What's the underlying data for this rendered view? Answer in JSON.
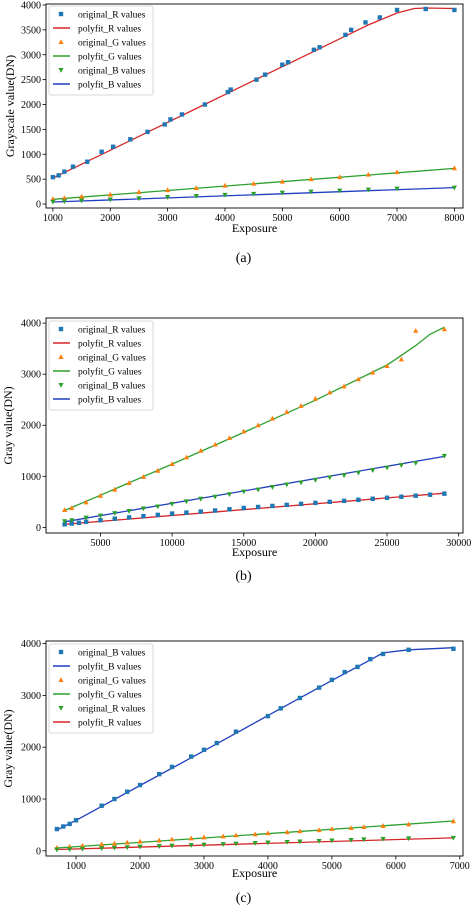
{
  "chart_data": [
    {
      "type": "scatter",
      "panel_label": "(a)",
      "xlabel": "Exposure",
      "ylabel": "Grayscale value(DN)",
      "xlim": [
        880,
        8150
      ],
      "ylim": [
        -80,
        4020
      ],
      "xticks": [
        1000,
        2000,
        3000,
        4000,
        5000,
        6000,
        7000,
        8000
      ],
      "yticks": [
        0,
        500,
        1000,
        1500,
        2000,
        2500,
        3000,
        3500,
        4000
      ],
      "legend_position": "top-left",
      "grid": false,
      "series": [
        {
          "name": "original_R values",
          "kind": "scatter",
          "marker": "square",
          "color": "#1f77b4",
          "x": [
            1000,
            1100,
            1200,
            1350,
            1600,
            1850,
            2050,
            2350,
            2650,
            2950,
            3050,
            3250,
            3650,
            4050,
            4100,
            4550,
            4700,
            5000,
            5100,
            5550,
            5650,
            6100,
            6200,
            6450,
            6700,
            7000,
            7500,
            8000
          ],
          "y": [
            540,
            575,
            650,
            750,
            850,
            1050,
            1150,
            1300,
            1450,
            1600,
            1700,
            1800,
            2000,
            2250,
            2300,
            2500,
            2600,
            2800,
            2850,
            3100,
            3150,
            3400,
            3500,
            3650,
            3750,
            3900,
            3920,
            3900
          ]
        },
        {
          "name": "polyfit_R values",
          "kind": "line",
          "color": "#d62728",
          "x": [
            1000,
            1500,
            2000,
            2500,
            3000,
            3500,
            4000,
            4500,
            5000,
            5500,
            6000,
            6500,
            7000,
            7300,
            7500,
            8000
          ],
          "y": [
            520,
            800,
            1080,
            1360,
            1640,
            1920,
            2200,
            2480,
            2760,
            3040,
            3320,
            3600,
            3840,
            3930,
            3940,
            3930
          ]
        },
        {
          "name": "original_G values",
          "kind": "scatter",
          "marker": "triangle-up",
          "color": "#ff7f0e",
          "x": [
            1000,
            1200,
            1500,
            2000,
            2500,
            3000,
            3500,
            4000,
            4500,
            5000,
            5500,
            6000,
            6500,
            7000,
            8000
          ],
          "y": [
            100,
            120,
            150,
            190,
            240,
            280,
            320,
            370,
            410,
            450,
            500,
            540,
            590,
            640,
            720
          ]
        },
        {
          "name": "polyfit_G values",
          "kind": "line",
          "color": "#2ca02c",
          "x": [
            1000,
            8000
          ],
          "y": [
            95,
            715
          ]
        },
        {
          "name": "original_B values",
          "kind": "scatter",
          "marker": "triangle-down",
          "color": "#2ca02c",
          "x": [
            1000,
            1200,
            1500,
            2000,
            2500,
            3000,
            3500,
            4000,
            4500,
            5000,
            5500,
            6000,
            6500,
            7000,
            8000
          ],
          "y": [
            45,
            55,
            70,
            90,
            115,
            140,
            160,
            185,
            205,
            230,
            250,
            270,
            290,
            310,
            330
          ]
        },
        {
          "name": "polyfit_B values",
          "kind": "line",
          "color": "#1f3fbf",
          "x": [
            1000,
            8000
          ],
          "y": [
            40,
            330
          ]
        }
      ]
    },
    {
      "type": "scatter",
      "panel_label": "(b)",
      "xlabel": "Exposure",
      "ylabel": "Gray value(DN)",
      "xlim": [
        1200,
        30300
      ],
      "ylim": [
        -110,
        4100
      ],
      "xticks": [
        5000,
        10000,
        15000,
        20000,
        25000,
        30000
      ],
      "yticks": [
        0,
        1000,
        2000,
        3000,
        4000
      ],
      "legend_position": "top-left",
      "grid": false,
      "series": [
        {
          "name": "original_R values",
          "kind": "scatter",
          "marker": "square",
          "color": "#1f77b4",
          "x": [
            2500,
            3000,
            3500,
            4000,
            5000,
            6000,
            7000,
            8000,
            9000,
            10000,
            11000,
            12000,
            13000,
            14000,
            15000,
            16000,
            17000,
            18000,
            19000,
            20000,
            21000,
            22000,
            23000,
            24000,
            25000,
            26000,
            27000,
            28000,
            29000
          ],
          "y": [
            60,
            75,
            90,
            110,
            140,
            170,
            195,
            220,
            245,
            270,
            290,
            310,
            330,
            355,
            380,
            400,
            420,
            440,
            460,
            480,
            500,
            520,
            540,
            560,
            580,
            600,
            620,
            640,
            660
          ]
        },
        {
          "name": "polyfit_R values",
          "kind": "line",
          "color": "#d62728",
          "x": [
            2500,
            29000
          ],
          "y": [
            60,
            670
          ]
        },
        {
          "name": "original_G values",
          "kind": "scatter",
          "marker": "triangle-up",
          "color": "#ff7f0e",
          "x": [
            2500,
            3000,
            4000,
            5000,
            6000,
            7000,
            8000,
            9000,
            10000,
            11000,
            12000,
            13000,
            14000,
            15000,
            16000,
            17000,
            18000,
            19000,
            20000,
            21000,
            22000,
            23000,
            24000,
            25000,
            26000,
            27000,
            29000
          ],
          "y": [
            340,
            380,
            490,
            620,
            740,
            870,
            990,
            1110,
            1240,
            1370,
            1500,
            1620,
            1750,
            1880,
            2000,
            2130,
            2260,
            2380,
            2520,
            2640,
            2760,
            2900,
            3030,
            3160,
            3290,
            3850,
            3880
          ]
        },
        {
          "name": "polyfit_G values",
          "kind": "line",
          "color": "#2ca02c",
          "x": [
            2500,
            5000,
            10000,
            15000,
            20000,
            25000,
            27000,
            28000,
            29000
          ],
          "y": [
            330,
            630,
            1240,
            1860,
            2490,
            3180,
            3560,
            3780,
            3920
          ]
        },
        {
          "name": "original_B values",
          "kind": "scatter",
          "marker": "triangle-down",
          "color": "#2ca02c",
          "x": [
            2500,
            3000,
            4000,
            5000,
            6000,
            7000,
            8000,
            9000,
            10000,
            11000,
            12000,
            13000,
            14000,
            15000,
            16000,
            17000,
            18000,
            19000,
            20000,
            21000,
            22000,
            23000,
            24000,
            25000,
            26000,
            27000,
            29000
          ],
          "y": [
            120,
            140,
            190,
            230,
            280,
            320,
            370,
            410,
            460,
            510,
            560,
            600,
            650,
            700,
            740,
            790,
            840,
            880,
            930,
            980,
            1020,
            1070,
            1120,
            1170,
            1220,
            1260,
            1400
          ]
        },
        {
          "name": "polyfit_B values",
          "kind": "line",
          "color": "#1f3fbf",
          "x": [
            2500,
            29000
          ],
          "y": [
            110,
            1390
          ]
        }
      ]
    },
    {
      "type": "scatter",
      "panel_label": "(c)",
      "xlabel": "Exposure",
      "ylabel": "Gray value(DN)",
      "xlim": [
        530,
        7050
      ],
      "ylim": [
        -100,
        4050
      ],
      "xticks": [
        1000,
        2000,
        3000,
        4000,
        5000,
        6000,
        7000
      ],
      "yticks": [
        0,
        1000,
        2000,
        3000,
        4000
      ],
      "legend_position": "top-left",
      "grid": false,
      "series": [
        {
          "name": "original_B values",
          "kind": "scatter",
          "marker": "square",
          "color": "#1f77b4",
          "x": [
            700,
            800,
            900,
            1000,
            1400,
            1600,
            1800,
            2000,
            2300,
            2500,
            2800,
            3000,
            3200,
            3500,
            4000,
            4200,
            4500,
            4800,
            5000,
            5200,
            5400,
            5600,
            5800,
            6200,
            6900
          ],
          "y": [
            420,
            470,
            520,
            590,
            870,
            1000,
            1140,
            1270,
            1480,
            1620,
            1820,
            1950,
            2080,
            2300,
            2600,
            2750,
            2950,
            3150,
            3300,
            3450,
            3550,
            3700,
            3800,
            3880,
            3900
          ]
        },
        {
          "name": "polyfit_B values",
          "kind": "line",
          "color": "#1f3fbf",
          "x": [
            700,
            1000,
            2000,
            3000,
            4000,
            5000,
            5500,
            5800,
            6200,
            6900
          ],
          "y": [
            400,
            590,
            1260,
            1930,
            2610,
            3290,
            3620,
            3820,
            3880,
            3920
          ]
        },
        {
          "name": "original_G values",
          "kind": "scatter",
          "marker": "triangle-up",
          "color": "#ff7f0e",
          "x": [
            700,
            900,
            1100,
            1400,
            1600,
            1800,
            2000,
            2300,
            2500,
            2800,
            3000,
            3300,
            3500,
            3800,
            4000,
            4300,
            4500,
            4800,
            5000,
            5300,
            5500,
            5800,
            6200,
            6900
          ],
          "y": [
            60,
            80,
            100,
            125,
            140,
            160,
            180,
            200,
            220,
            240,
            260,
            280,
            300,
            320,
            340,
            360,
            380,
            400,
            420,
            440,
            460,
            480,
            510,
            570
          ]
        },
        {
          "name": "polyfit_G values",
          "kind": "line",
          "color": "#2ca02c",
          "x": [
            700,
            6900
          ],
          "y": [
            55,
            575
          ]
        },
        {
          "name": "original_R values",
          "kind": "scatter",
          "marker": "triangle-down",
          "color": "#2ca02c",
          "x": [
            700,
            900,
            1100,
            1400,
            1600,
            1800,
            2000,
            2300,
            2500,
            2800,
            3000,
            3300,
            3500,
            3800,
            4000,
            4300,
            4500,
            4800,
            5000,
            5300,
            5500,
            5800,
            6200,
            6900
          ],
          "y": [
            25,
            30,
            40,
            50,
            60,
            70,
            80,
            90,
            100,
            110,
            120,
            130,
            140,
            150,
            160,
            170,
            180,
            190,
            200,
            210,
            220,
            230,
            240,
            250
          ]
        },
        {
          "name": "polyfit_R values",
          "kind": "line",
          "color": "#d62728",
          "x": [
            700,
            6900
          ],
          "y": [
            25,
            250
          ]
        }
      ]
    }
  ]
}
